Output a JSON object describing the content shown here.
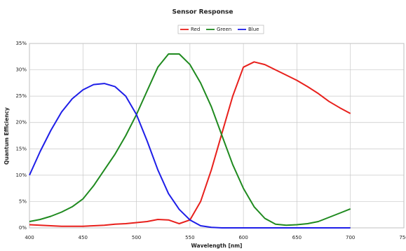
{
  "chart_data": {
    "type": "line",
    "title": "Sensor Response",
    "x_label": "Wavelength [nm]",
    "y_label": "Quantum Efficiency",
    "x": [
      400,
      410,
      420,
      430,
      440,
      450,
      460,
      470,
      480,
      490,
      500,
      510,
      520,
      530,
      540,
      550,
      560,
      570,
      580,
      590,
      600,
      610,
      620,
      630,
      640,
      650,
      660,
      670,
      680,
      690,
      700
    ],
    "series": [
      {
        "name": "Red",
        "color": "#e8201c",
        "values": [
          0.6,
          0.5,
          0.4,
          0.3,
          0.3,
          0.3,
          0.4,
          0.5,
          0.7,
          0.8,
          1.0,
          1.2,
          1.6,
          1.5,
          0.8,
          1.5,
          5,
          11,
          18,
          25,
          30.5,
          31.5,
          31,
          30,
          29,
          28,
          26.8,
          25.5,
          24,
          22.8,
          21.7
        ]
      },
      {
        "name": "Green",
        "color": "#1f8a1f",
        "values": [
          1.2,
          1.6,
          2.2,
          3,
          4,
          5.5,
          8,
          11,
          14,
          17.5,
          21.5,
          26,
          30.5,
          33,
          33,
          31,
          27.5,
          23,
          17.5,
          12,
          7.5,
          4,
          1.8,
          0.7,
          0.5,
          0.6,
          0.8,
          1.2,
          2,
          2.8,
          3.6
        ]
      },
      {
        "name": "Blue",
        "color": "#1e1ee8",
        "values": [
          10,
          14.5,
          18.5,
          22,
          24.5,
          26.2,
          27.2,
          27.4,
          26.8,
          25,
          21.5,
          16.5,
          11,
          6.5,
          3.5,
          1.5,
          0.4,
          0.1,
          0,
          0,
          0,
          0,
          0,
          0,
          0,
          0,
          0,
          0,
          0,
          0,
          0
        ]
      }
    ],
    "xlim": [
      400,
      750
    ],
    "xticks": [
      400,
      450,
      500,
      550,
      600,
      650,
      700,
      750
    ],
    "ylim": [
      0,
      35
    ],
    "yticks": [
      {
        "value": 0,
        "label": "0%"
      },
      {
        "value": 5,
        "label": "5%"
      },
      {
        "value": 10,
        "label": "10%"
      },
      {
        "value": 15,
        "label": "15%"
      },
      {
        "value": 20,
        "label": "20%"
      },
      {
        "value": 25,
        "label": "25%"
      },
      {
        "value": 30,
        "label": "30%"
      },
      {
        "value": 35,
        "label": "35%"
      }
    ],
    "grid": true,
    "legend": "top"
  }
}
